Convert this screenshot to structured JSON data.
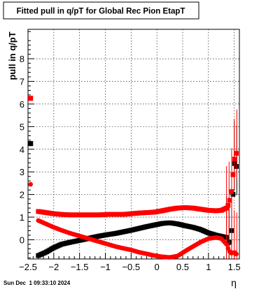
{
  "chart_data": {
    "type": "scatter",
    "title": "Fitted pull in q/pT for Global Rec Pion EtapT",
    "xlabel": "η",
    "ylabel": "pull in q/pT",
    "xlim": [
      -2.5,
      1.6
    ],
    "ylim": [
      -0.85,
      9.3
    ],
    "grid": true,
    "x_ticks": [
      -2.5,
      -2,
      -1.5,
      -1,
      -0.5,
      0,
      0.5,
      1,
      1.5
    ],
    "x_tick_labels": [
      "−2.5",
      "−2",
      "−1.5",
      "−1",
      "−0.5",
      "0",
      "0.5",
      "1",
      "1.5"
    ],
    "y_ticks": [
      0,
      1,
      2,
      3,
      4,
      5,
      6,
      7,
      8
    ],
    "y_tick_labels": [
      "0",
      "1",
      "2",
      "3",
      "4",
      "5",
      "6",
      "7",
      "8"
    ],
    "series": [
      {
        "color": "#000000",
        "marker": "square",
        "x": [
          -2.45,
          -2.3,
          -2.15,
          -2.0,
          -1.85,
          -1.7,
          -1.55,
          -1.4,
          -1.25,
          -1.1,
          -0.95,
          -0.8,
          -0.65,
          -0.5,
          -0.35,
          -0.2,
          -0.05,
          0.1,
          0.25,
          0.4,
          0.55,
          0.7,
          0.85,
          1.0,
          1.15,
          1.25,
          1.35,
          1.4,
          1.45,
          1.5,
          1.55
        ],
        "y": [
          4.25,
          -0.7,
          -0.55,
          -0.35,
          -0.2,
          -0.12,
          -0.05,
          0.02,
          0.1,
          0.17,
          0.23,
          0.28,
          0.35,
          0.42,
          0.5,
          0.58,
          0.65,
          0.72,
          0.75,
          0.7,
          0.62,
          0.55,
          0.45,
          0.3,
          0.2,
          0.15,
          0.1,
          -0.3,
          0.5,
          3.4,
          3.2
        ]
      },
      {
        "color": "#ff0000",
        "marker": "square",
        "x": [
          -2.45,
          -2.3,
          -2.15,
          -2.0,
          -1.85,
          -1.7,
          -1.55,
          -1.4,
          -1.25,
          -1.1,
          -0.95,
          -0.8,
          -0.65,
          -0.5,
          -0.35,
          -0.2,
          -0.05,
          0.1,
          0.25,
          0.4,
          0.55,
          0.7,
          0.85,
          1.0,
          1.15,
          1.25,
          1.35,
          1.4,
          1.45,
          1.5,
          1.55
        ],
        "y": [
          6.25,
          1.25,
          1.2,
          1.15,
          1.12,
          1.1,
          1.1,
          1.1,
          1.1,
          1.1,
          1.12,
          1.12,
          1.12,
          1.15,
          1.18,
          1.2,
          1.22,
          1.28,
          1.35,
          1.4,
          1.42,
          1.4,
          1.35,
          1.3,
          1.28,
          1.3,
          1.4,
          1.6,
          2.2,
          3.5,
          3.9
        ]
      },
      {
        "color": "#ff0000",
        "marker": "circle",
        "x": [
          -2.45,
          -2.3,
          -2.15,
          -2.0,
          -1.85,
          -1.7,
          -1.55,
          -1.4,
          -1.25,
          -1.1,
          -0.95,
          -0.8,
          -0.65,
          -0.5,
          -0.35,
          -0.2,
          -0.05,
          0.1,
          0.25,
          0.4,
          0.55,
          0.7,
          0.85,
          1.0,
          1.15,
          1.25,
          1.35,
          1.4,
          1.45,
          1.5,
          1.55
        ],
        "y": [
          2.45,
          0.85,
          0.7,
          0.55,
          0.42,
          0.3,
          0.2,
          0.1,
          0.0,
          -0.1,
          -0.2,
          -0.3,
          -0.38,
          -0.45,
          -0.55,
          -0.62,
          -0.7,
          -0.75,
          -0.78,
          -0.72,
          -0.5,
          -0.3,
          -0.1,
          0.05,
          0.1,
          0.05,
          -0.2,
          -0.5,
          -0.6,
          -0.55,
          -0.65
        ]
      }
    ]
  },
  "footer": {
    "timestamp": "Sun Dec  1 09:33:10 2024"
  }
}
